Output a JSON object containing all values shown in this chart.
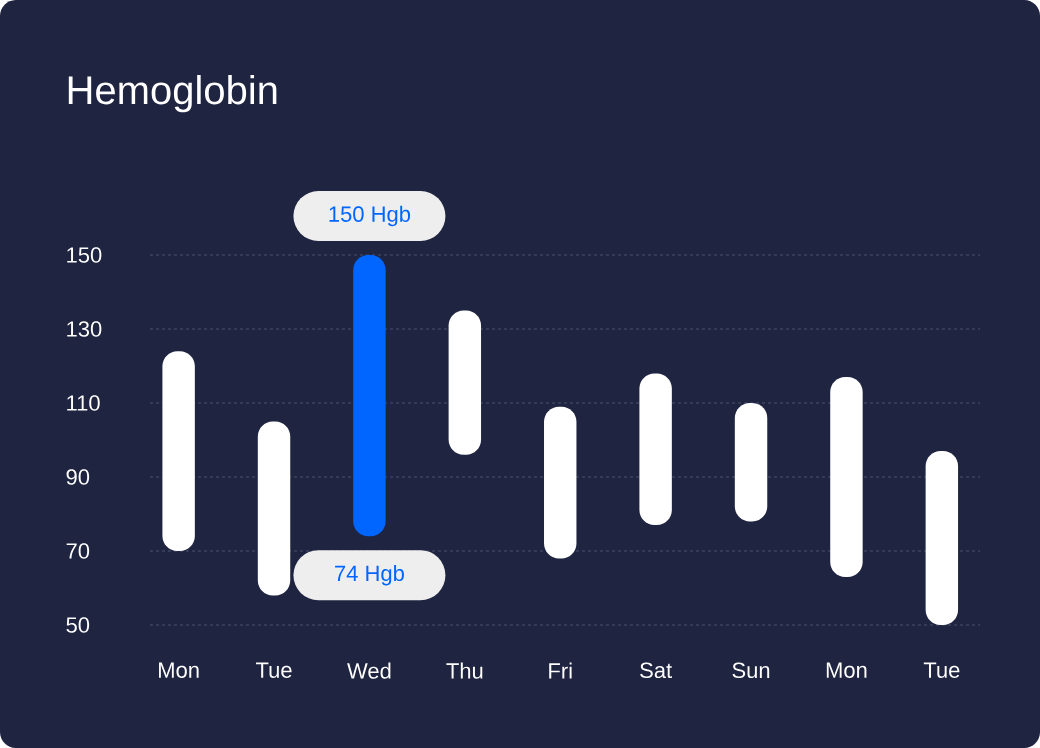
{
  "chart_data": {
    "type": "bar",
    "title": "Hemoglobin",
    "categories": [
      "Mon",
      "Tue",
      "Wed",
      "Thu",
      "Fri",
      "Sat",
      "Sun",
      "Mon",
      "Tue"
    ],
    "base": [
      70,
      58,
      74,
      96,
      68,
      77,
      78,
      63,
      50
    ],
    "values": [
      54,
      47,
      76,
      39,
      41,
      41,
      32,
      54,
      47
    ],
    "colors": [
      "#ffffff",
      "#ffffff",
      "#0066ff",
      "#ffffff",
      "#ffffff",
      "#ffffff",
      "#ffffff",
      "#ffffff",
      "#ffffff"
    ],
    "annotations": [
      {
        "text": "150 Hgb",
        "x": "Wed",
        "y": 150
      },
      {
        "text": "74 Hgb",
        "x": "Wed",
        "y": 74
      }
    ],
    "ylim": [
      50,
      150
    ],
    "yticks": [
      50,
      70,
      90,
      110,
      130,
      150
    ],
    "grid": "y"
  }
}
